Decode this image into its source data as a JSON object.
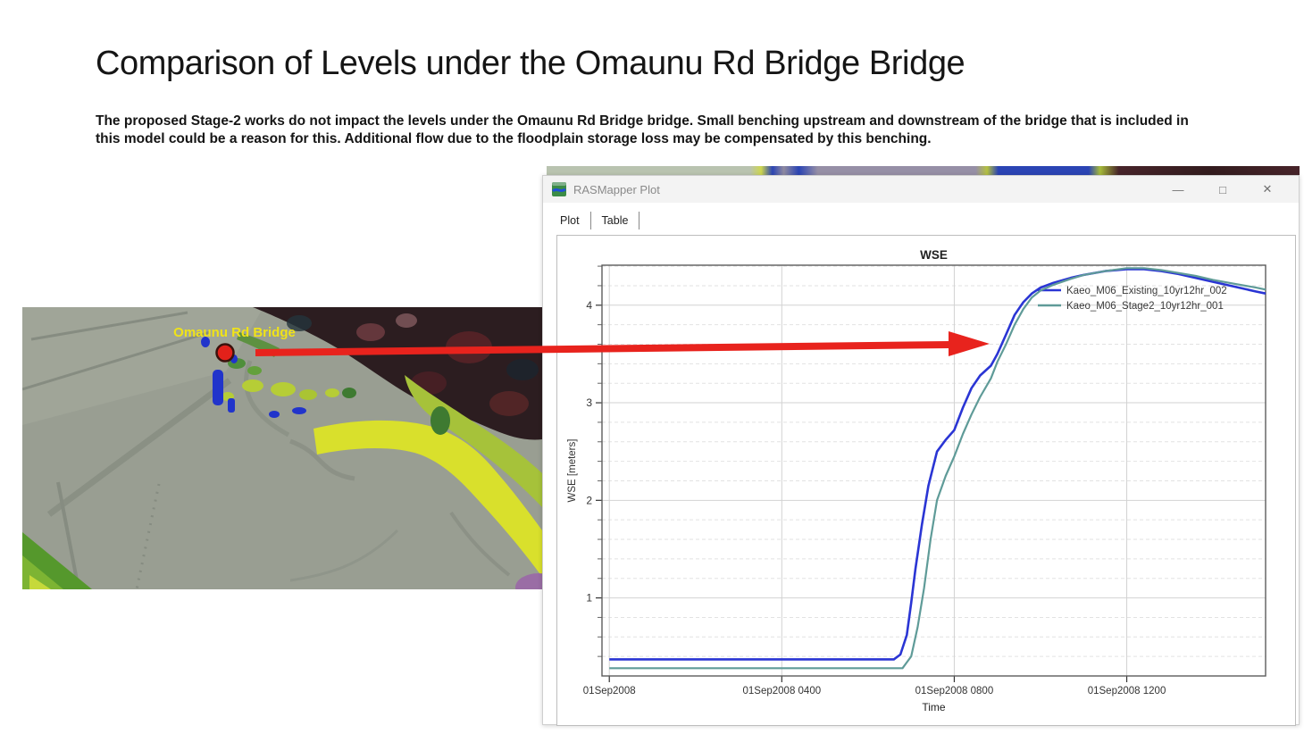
{
  "slide": {
    "title": "Comparison of Levels under the Omaunu Rd Bridge Bridge",
    "subtitle": "The proposed Stage-2 works do not impact the levels under the Omaunu Rd Bridge bridge. Small benching upstream and downstream of the bridge that is included in this model could be a reason for this. Additional flow due to the floodplain storage loss may be compensated by this benching."
  },
  "map": {
    "label": "Omaunu Rd Bridge",
    "label_color": "#f0e318",
    "marker_color": "#e3211a"
  },
  "annotation": {
    "arrow_color": "#e8231d"
  },
  "window": {
    "title": "RASMapper Plot",
    "tabs": [
      {
        "label": "Plot",
        "active": true
      },
      {
        "label": "Table",
        "active": false
      }
    ],
    "controls": [
      {
        "name": "minimize",
        "glyph": "—"
      },
      {
        "name": "maximize",
        "glyph": "□"
      },
      {
        "name": "close",
        "glyph": "✕"
      }
    ]
  },
  "chart_data": {
    "type": "line",
    "title": "WSE",
    "xlabel": "Time",
    "ylabel": "WSE [meters]",
    "x_unit": "hours since 01Sep2008 0000",
    "xlim_hours": [
      -0.17,
      15.22
    ],
    "ylim": [
      0.2,
      4.41
    ],
    "grid": true,
    "legend_position": "top-right",
    "x_ticks": [
      {
        "t": 0,
        "label": "01Sep2008"
      },
      {
        "t": 4,
        "label": "01Sep2008 0400"
      },
      {
        "t": 8,
        "label": "01Sep2008 0800"
      },
      {
        "t": 12,
        "label": "01Sep2008 1200"
      }
    ],
    "y_major_ticks": [
      1,
      2,
      3,
      4
    ],
    "y_minor_step": 0.2,
    "series": [
      {
        "name": "Kaeo_M06_Existing_10yr12hr_002",
        "color": "#2a35d4",
        "points": [
          [
            0,
            0.37
          ],
          [
            1,
            0.37
          ],
          [
            2,
            0.37
          ],
          [
            3,
            0.37
          ],
          [
            4,
            0.37
          ],
          [
            5,
            0.37
          ],
          [
            6,
            0.37
          ],
          [
            6.6,
            0.37
          ],
          [
            6.75,
            0.42
          ],
          [
            6.9,
            0.62
          ],
          [
            7.0,
            0.95
          ],
          [
            7.1,
            1.3
          ],
          [
            7.25,
            1.75
          ],
          [
            7.4,
            2.15
          ],
          [
            7.6,
            2.5
          ],
          [
            7.8,
            2.62
          ],
          [
            8.0,
            2.72
          ],
          [
            8.2,
            2.95
          ],
          [
            8.4,
            3.15
          ],
          [
            8.6,
            3.28
          ],
          [
            8.85,
            3.38
          ],
          [
            9.0,
            3.5
          ],
          [
            9.2,
            3.7
          ],
          [
            9.4,
            3.9
          ],
          [
            9.6,
            4.03
          ],
          [
            9.8,
            4.12
          ],
          [
            10.0,
            4.18
          ],
          [
            10.3,
            4.23
          ],
          [
            10.7,
            4.28
          ],
          [
            11.0,
            4.31
          ],
          [
            11.5,
            4.35
          ],
          [
            12.0,
            4.37
          ],
          [
            12.4,
            4.37
          ],
          [
            12.8,
            4.35
          ],
          [
            13.2,
            4.32
          ],
          [
            13.6,
            4.28
          ],
          [
            14.0,
            4.24
          ],
          [
            14.5,
            4.19
          ],
          [
            15.0,
            4.14
          ],
          [
            15.22,
            4.12
          ]
        ]
      },
      {
        "name": "Kaeo_M06_Stage2_10yr12hr_001",
        "color": "#5f9b98",
        "points": [
          [
            0,
            0.28
          ],
          [
            1,
            0.28
          ],
          [
            2,
            0.28
          ],
          [
            3,
            0.28
          ],
          [
            4,
            0.28
          ],
          [
            5,
            0.28
          ],
          [
            6,
            0.28
          ],
          [
            6.8,
            0.28
          ],
          [
            7.0,
            0.4
          ],
          [
            7.15,
            0.7
          ],
          [
            7.3,
            1.1
          ],
          [
            7.45,
            1.6
          ],
          [
            7.6,
            2.0
          ],
          [
            7.8,
            2.25
          ],
          [
            8.0,
            2.45
          ],
          [
            8.2,
            2.68
          ],
          [
            8.4,
            2.88
          ],
          [
            8.6,
            3.06
          ],
          [
            8.85,
            3.25
          ],
          [
            9.0,
            3.42
          ],
          [
            9.2,
            3.6
          ],
          [
            9.4,
            3.8
          ],
          [
            9.6,
            3.96
          ],
          [
            9.8,
            4.08
          ],
          [
            10.0,
            4.15
          ],
          [
            10.3,
            4.21
          ],
          [
            10.7,
            4.27
          ],
          [
            11.0,
            4.31
          ],
          [
            11.5,
            4.35
          ],
          [
            12.0,
            4.38
          ],
          [
            12.4,
            4.38
          ],
          [
            12.8,
            4.36
          ],
          [
            13.2,
            4.33
          ],
          [
            13.6,
            4.3
          ],
          [
            14.0,
            4.26
          ],
          [
            14.5,
            4.22
          ],
          [
            15.0,
            4.18
          ],
          [
            15.22,
            4.16
          ]
        ]
      }
    ]
  }
}
